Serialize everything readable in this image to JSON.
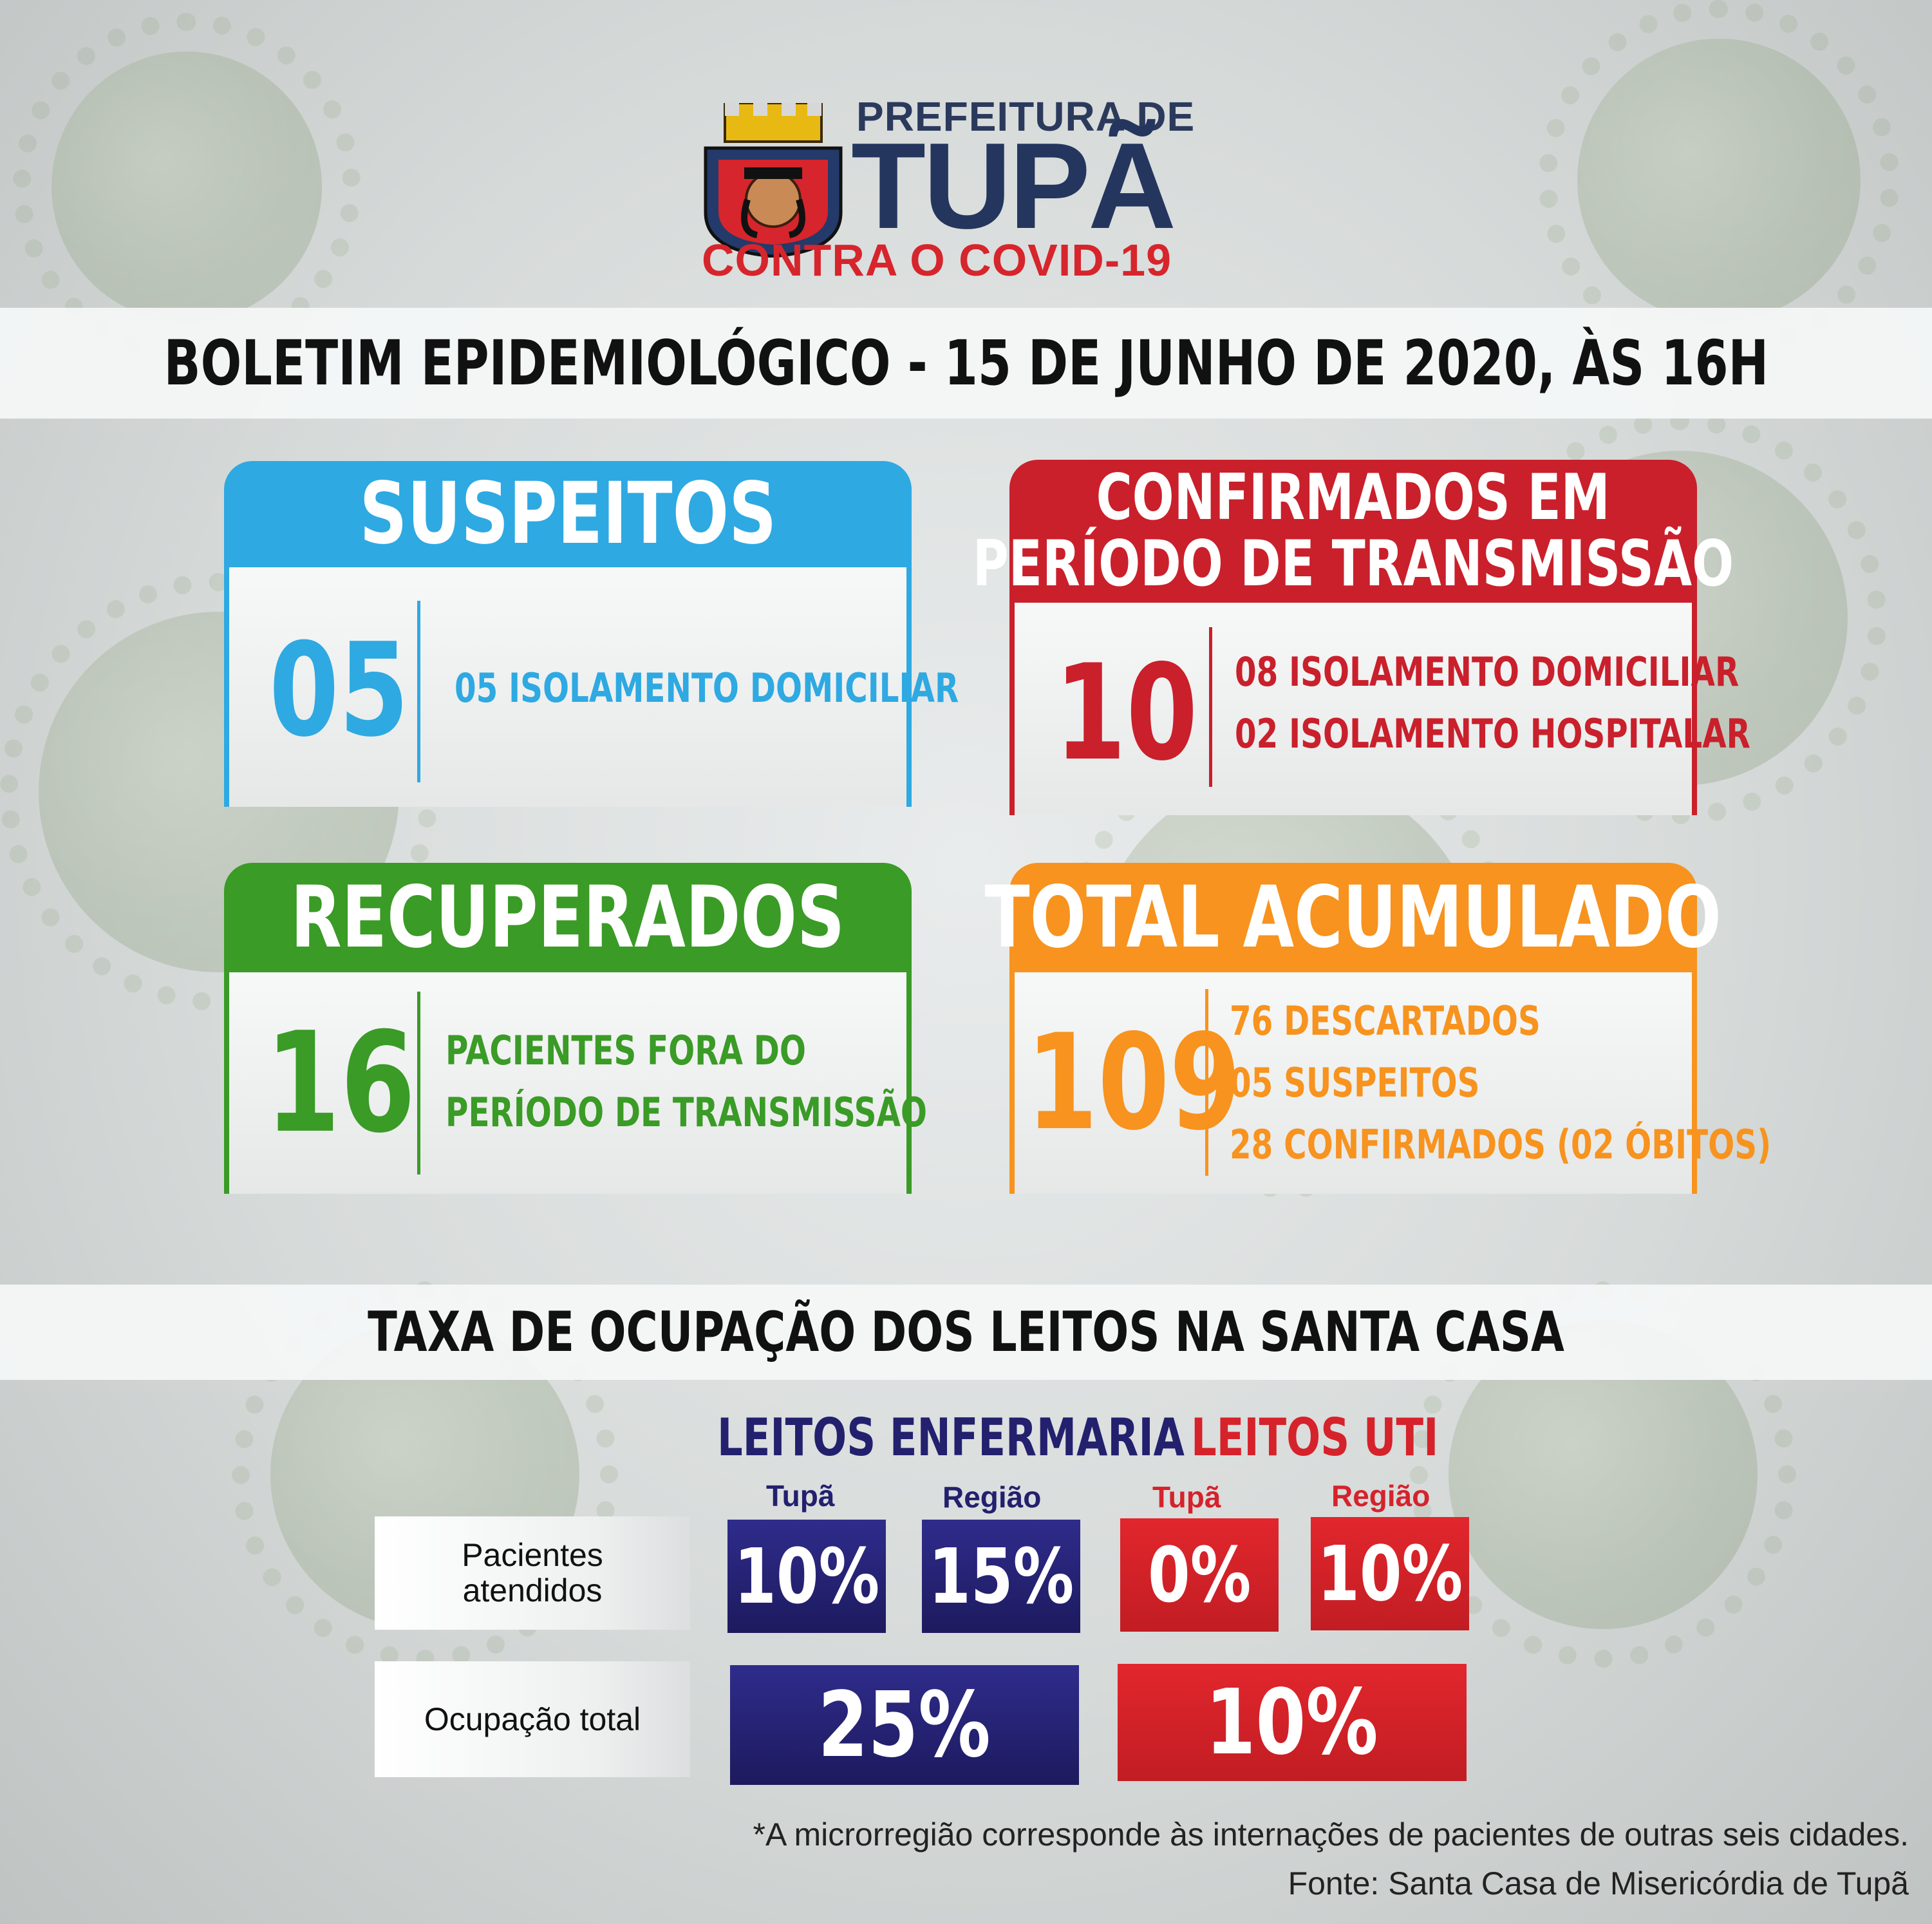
{
  "header": {
    "prefeitura": "PREFEITURA DE",
    "city": "TUPÃ",
    "campaign": "CONTRA O COVID-19"
  },
  "bulletin_title": "BOLETIM EPIDEMIOLÓGICO - 15 DE JUNHO DE 2020, ÀS 16H",
  "cards": {
    "suspeitos": {
      "title": "SUSPEITOS",
      "value": "05",
      "lines": [
        "05 ISOLAMENTO DOMICILIAR"
      ],
      "color": "#2ea9e2"
    },
    "confirmados": {
      "title_line1": "CONFIRMADOS EM",
      "title_line2": "PERÍODO DE TRANSMISSÃO",
      "value": "10",
      "lines": [
        "08 ISOLAMENTO DOMICILIAR",
        "02 ISOLAMENTO HOSPITALAR"
      ],
      "color": "#c9202c"
    },
    "recuperados": {
      "title": "RECUPERADOS",
      "value": "16",
      "lines": [
        "PACIENTES FORA DO",
        "PERÍODO DE TRANSMISSÃO"
      ],
      "color": "#3a9b26"
    },
    "total": {
      "title": "TOTAL ACUMULADO",
      "value": "109",
      "lines": [
        "76 DESCARTADOS",
        "05 SUSPEITOS",
        "28 CONFIRMADOS (02 ÓBITOS)"
      ],
      "color": "#f7931e"
    }
  },
  "occupancy": {
    "title": "TAXA DE OCUPAÇÃO DOS LEITOS NA SANTA CASA",
    "enfermaria": {
      "label": "LEITOS ENFERMARIA",
      "sub_tupa": "Tupã",
      "sub_regiao": "Região",
      "tupa": "10%",
      "regiao": "15%",
      "total": "25%",
      "color": "#23206e"
    },
    "uti": {
      "label": "LEITOS UTI",
      "sub_tupa": "Tupã",
      "sub_regiao": "Região",
      "tupa": "0%",
      "regiao": "10%",
      "total": "10%",
      "color": "#d6222b"
    },
    "row_pacientes_line1": "Pacientes",
    "row_pacientes_line2": "atendidos",
    "row_total": "Ocupação total"
  },
  "footnote": "*A microrregião corresponde às internações de pacientes de outras seis cidades.",
  "source": "Fonte: Santa Casa de Misericórdia de Tupã"
}
